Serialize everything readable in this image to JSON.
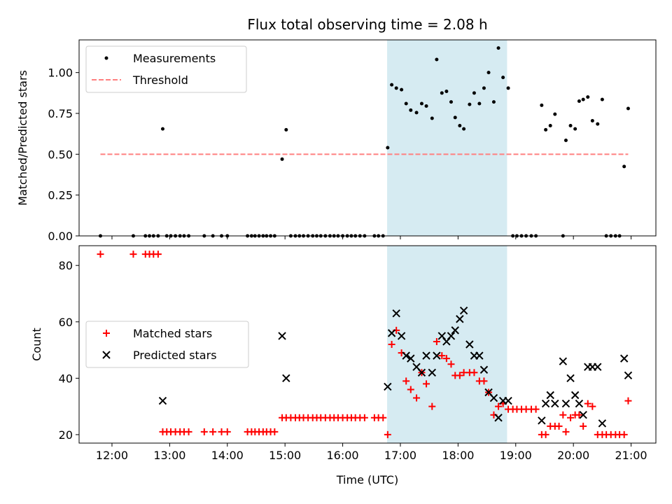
{
  "chart_data": [
    {
      "type": "scatter",
      "title": "Flux total observing time = 2.08 h",
      "ylabel": "Matched/Predicted stars",
      "xlabel": "",
      "xlim": [
        11.43,
        21.43
      ],
      "ylim": [
        0,
        1.2
      ],
      "xticks": [
        12,
        13,
        14,
        15,
        16,
        17,
        18,
        19,
        20,
        21
      ],
      "yticks": [
        0.0,
        0.25,
        0.5,
        0.75,
        1.0
      ],
      "ytick_labels": [
        "0.00",
        "0.25",
        "0.50",
        "0.75",
        "1.00"
      ],
      "shaded_span": [
        16.77,
        18.85
      ],
      "legend_position": "top-left",
      "series": [
        {
          "name": "Measurements",
          "marker": "dot",
          "color": "#000000",
          "x": [
            11.8,
            12.37,
            12.58,
            12.65,
            12.72,
            12.8,
            12.88,
            12.95,
            13.02,
            13.1,
            13.18,
            13.25,
            13.33,
            13.6,
            13.75,
            13.9,
            14.0,
            14.35,
            14.42,
            14.48,
            14.55,
            14.62,
            14.68,
            14.75,
            14.82,
            14.95,
            15.02,
            15.1,
            15.18,
            15.25,
            15.32,
            15.4,
            15.48,
            15.55,
            15.62,
            15.7,
            15.78,
            15.85,
            15.92,
            16.0,
            16.08,
            16.15,
            16.22,
            16.3,
            16.38,
            16.55,
            16.62,
            16.7,
            16.78,
            16.85,
            16.93,
            17.02,
            17.1,
            17.18,
            17.28,
            17.37,
            17.45,
            17.55,
            17.63,
            17.72,
            17.8,
            17.88,
            17.95,
            18.03,
            18.1,
            18.2,
            18.28,
            18.37,
            18.45,
            18.53,
            18.62,
            18.7,
            18.78,
            18.87,
            18.95,
            19.02,
            19.1,
            19.18,
            19.27,
            19.35,
            19.45,
            19.52,
            19.6,
            19.68,
            19.82,
            19.87,
            19.95,
            20.03,
            20.1,
            20.17,
            20.25,
            20.33,
            20.42,
            20.5,
            20.57,
            20.65,
            20.73,
            20.8,
            20.88,
            20.95
          ],
          "y": [
            0,
            0,
            0,
            0,
            0,
            0,
            0.655,
            0,
            0,
            0,
            0,
            0,
            0,
            0,
            0,
            0,
            0,
            0,
            0,
            0,
            0,
            0,
            0,
            0,
            0,
            0.47,
            0.65,
            0,
            0,
            0,
            0,
            0,
            0,
            0,
            0,
            0,
            0,
            0,
            0,
            0,
            0,
            0,
            0,
            0,
            0,
            0,
            0,
            0,
            0.54,
            0.925,
            0.905,
            0.895,
            0.81,
            0.77,
            0.755,
            0.81,
            0.795,
            0.72,
            1.08,
            0.875,
            0.885,
            0.82,
            0.725,
            0.675,
            0.655,
            0.805,
            0.875,
            0.81,
            0.905,
            1.0,
            0.82,
            1.15,
            0.97,
            0.905,
            0,
            0,
            0,
            0,
            0,
            0,
            0.8,
            0.65,
            0.675,
            0.745,
            0,
            0.585,
            0.675,
            0.655,
            0.825,
            0.835,
            0.85,
            0.705,
            0.685,
            0.835,
            0,
            0,
            0,
            0,
            0.425,
            0.78
          ]
        },
        {
          "name": "Threshold",
          "marker": "dashed-line",
          "color": "#ff7f7f",
          "x": [
            11.8,
            20.95
          ],
          "y": [
            0.5,
            0.5
          ]
        }
      ]
    },
    {
      "type": "scatter",
      "title": "",
      "ylabel": "Count",
      "xlabel": "Time (UTC)",
      "xlim": [
        11.43,
        21.43
      ],
      "ylim": [
        17,
        87
      ],
      "xticks": [
        12,
        13,
        14,
        15,
        16,
        17,
        18,
        19,
        20,
        21
      ],
      "xtick_labels": [
        "12:00",
        "13:00",
        "14:00",
        "15:00",
        "16:00",
        "17:00",
        "18:00",
        "19:00",
        "20:00",
        "21:00"
      ],
      "yticks": [
        20,
        40,
        60,
        80
      ],
      "ytick_labels": [
        "20",
        "40",
        "60",
        "80"
      ],
      "shaded_span": [
        16.77,
        18.85
      ],
      "legend_position": "center-left",
      "series": [
        {
          "name": "Matched stars",
          "marker": "plus",
          "color": "#ff0000",
          "x": [
            11.8,
            12.37,
            12.58,
            12.65,
            12.72,
            12.8,
            12.88,
            12.95,
            13.02,
            13.1,
            13.18,
            13.25,
            13.33,
            13.6,
            13.75,
            13.9,
            14.0,
            14.35,
            14.42,
            14.48,
            14.55,
            14.62,
            14.68,
            14.75,
            14.82,
            14.95,
            15.02,
            15.1,
            15.18,
            15.25,
            15.32,
            15.4,
            15.48,
            15.55,
            15.62,
            15.7,
            15.78,
            15.85,
            15.92,
            16.0,
            16.08,
            16.15,
            16.22,
            16.3,
            16.38,
            16.55,
            16.62,
            16.7,
            16.78,
            16.85,
            16.93,
            17.02,
            17.1,
            17.18,
            17.28,
            17.37,
            17.45,
            17.55,
            17.63,
            17.72,
            17.8,
            17.88,
            17.95,
            18.03,
            18.1,
            18.2,
            18.28,
            18.37,
            18.45,
            18.53,
            18.62,
            18.7,
            18.78,
            18.87,
            18.95,
            19.02,
            19.1,
            19.18,
            19.27,
            19.35,
            19.45,
            19.52,
            19.6,
            19.68,
            19.75,
            19.82,
            19.87,
            19.95,
            20.03,
            20.1,
            20.17,
            20.25,
            20.33,
            20.42,
            20.5,
            20.57,
            20.65,
            20.73,
            20.8,
            20.88,
            20.95
          ],
          "y": [
            84,
            84,
            84,
            84,
            84,
            84,
            21,
            21,
            21,
            21,
            21,
            21,
            21,
            21,
            21,
            21,
            21,
            21,
            21,
            21,
            21,
            21,
            21,
            21,
            21,
            26,
            26,
            26,
            26,
            26,
            26,
            26,
            26,
            26,
            26,
            26,
            26,
            26,
            26,
            26,
            26,
            26,
            26,
            26,
            26,
            26,
            26,
            26,
            20,
            52,
            57,
            49,
            39,
            36,
            33,
            42,
            38,
            30,
            53,
            48,
            47,
            45,
            41,
            41,
            42,
            42,
            42,
            39,
            39,
            35,
            27,
            30,
            31,
            29,
            29,
            29,
            29,
            29,
            29,
            29,
            20,
            20,
            23,
            23,
            23,
            27,
            21,
            26,
            27,
            27,
            23,
            31,
            30,
            20,
            20,
            20,
            20,
            20,
            20,
            20,
            32
          ]
        },
        {
          "name": "Predicted stars",
          "marker": "x",
          "color": "#000000",
          "x": [
            12.88,
            14.95,
            15.02,
            16.78,
            16.85,
            16.93,
            17.02,
            17.1,
            17.18,
            17.28,
            17.37,
            17.45,
            17.55,
            17.63,
            17.72,
            17.8,
            17.88,
            17.95,
            18.03,
            18.1,
            18.2,
            18.28,
            18.37,
            18.45,
            18.53,
            18.62,
            18.7,
            18.78,
            18.87,
            19.45,
            19.52,
            19.6,
            19.68,
            19.82,
            19.87,
            19.95,
            20.03,
            20.1,
            20.17,
            20.25,
            20.33,
            20.42,
            20.5,
            20.88,
            20.95
          ],
          "y": [
            32,
            55,
            40,
            37,
            56,
            63,
            55,
            48,
            47,
            44,
            42,
            48,
            42,
            48,
            55,
            53,
            55,
            57,
            61,
            64,
            52,
            48,
            48,
            43,
            35,
            33,
            26,
            32,
            32,
            25,
            31,
            34,
            31,
            46,
            31,
            40,
            34,
            31,
            27,
            44,
            44,
            44,
            24,
            47,
            41
          ]
        }
      ]
    }
  ]
}
